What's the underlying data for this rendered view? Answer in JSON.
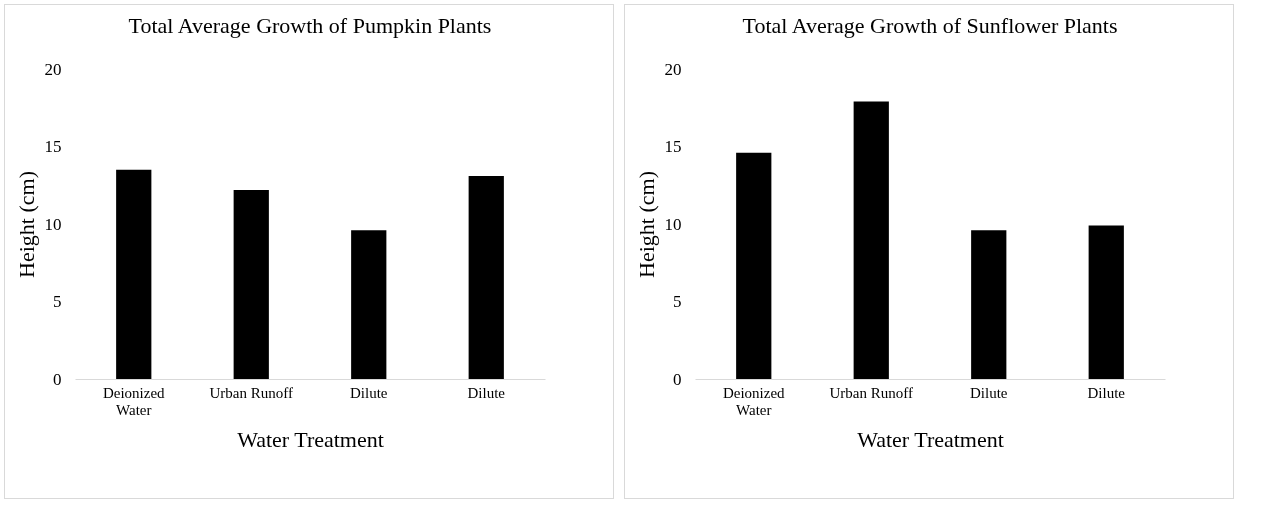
{
  "chart_data": [
    {
      "type": "bar",
      "title": "Total Average Growth of Pumpkin Plants",
      "xlabel": "Water Treatment",
      "ylabel": "Height (cm)",
      "categories": [
        "Deionized Water",
        "Urban Runoff",
        "Dilute",
        "Dilute"
      ],
      "values": [
        13.5,
        12.2,
        9.6,
        13.1
      ],
      "color": "#000000",
      "ylim": [
        0,
        20
      ],
      "yticks": [
        0,
        5,
        10,
        15,
        20
      ],
      "grid": false
    },
    {
      "type": "bar",
      "title": "Total Average Growth of Sunflower Plants",
      "xlabel": "Water Treatment",
      "ylabel": "Height (cm)",
      "categories": [
        "Deionized Water",
        "Urban Runoff",
        "Dilute",
        "Dilute"
      ],
      "values": [
        14.6,
        17.9,
        9.6,
        9.9
      ],
      "color": "#000000",
      "ylim": [
        0,
        20
      ],
      "yticks": [
        0,
        5,
        10,
        15,
        20
      ],
      "grid": false
    }
  ]
}
